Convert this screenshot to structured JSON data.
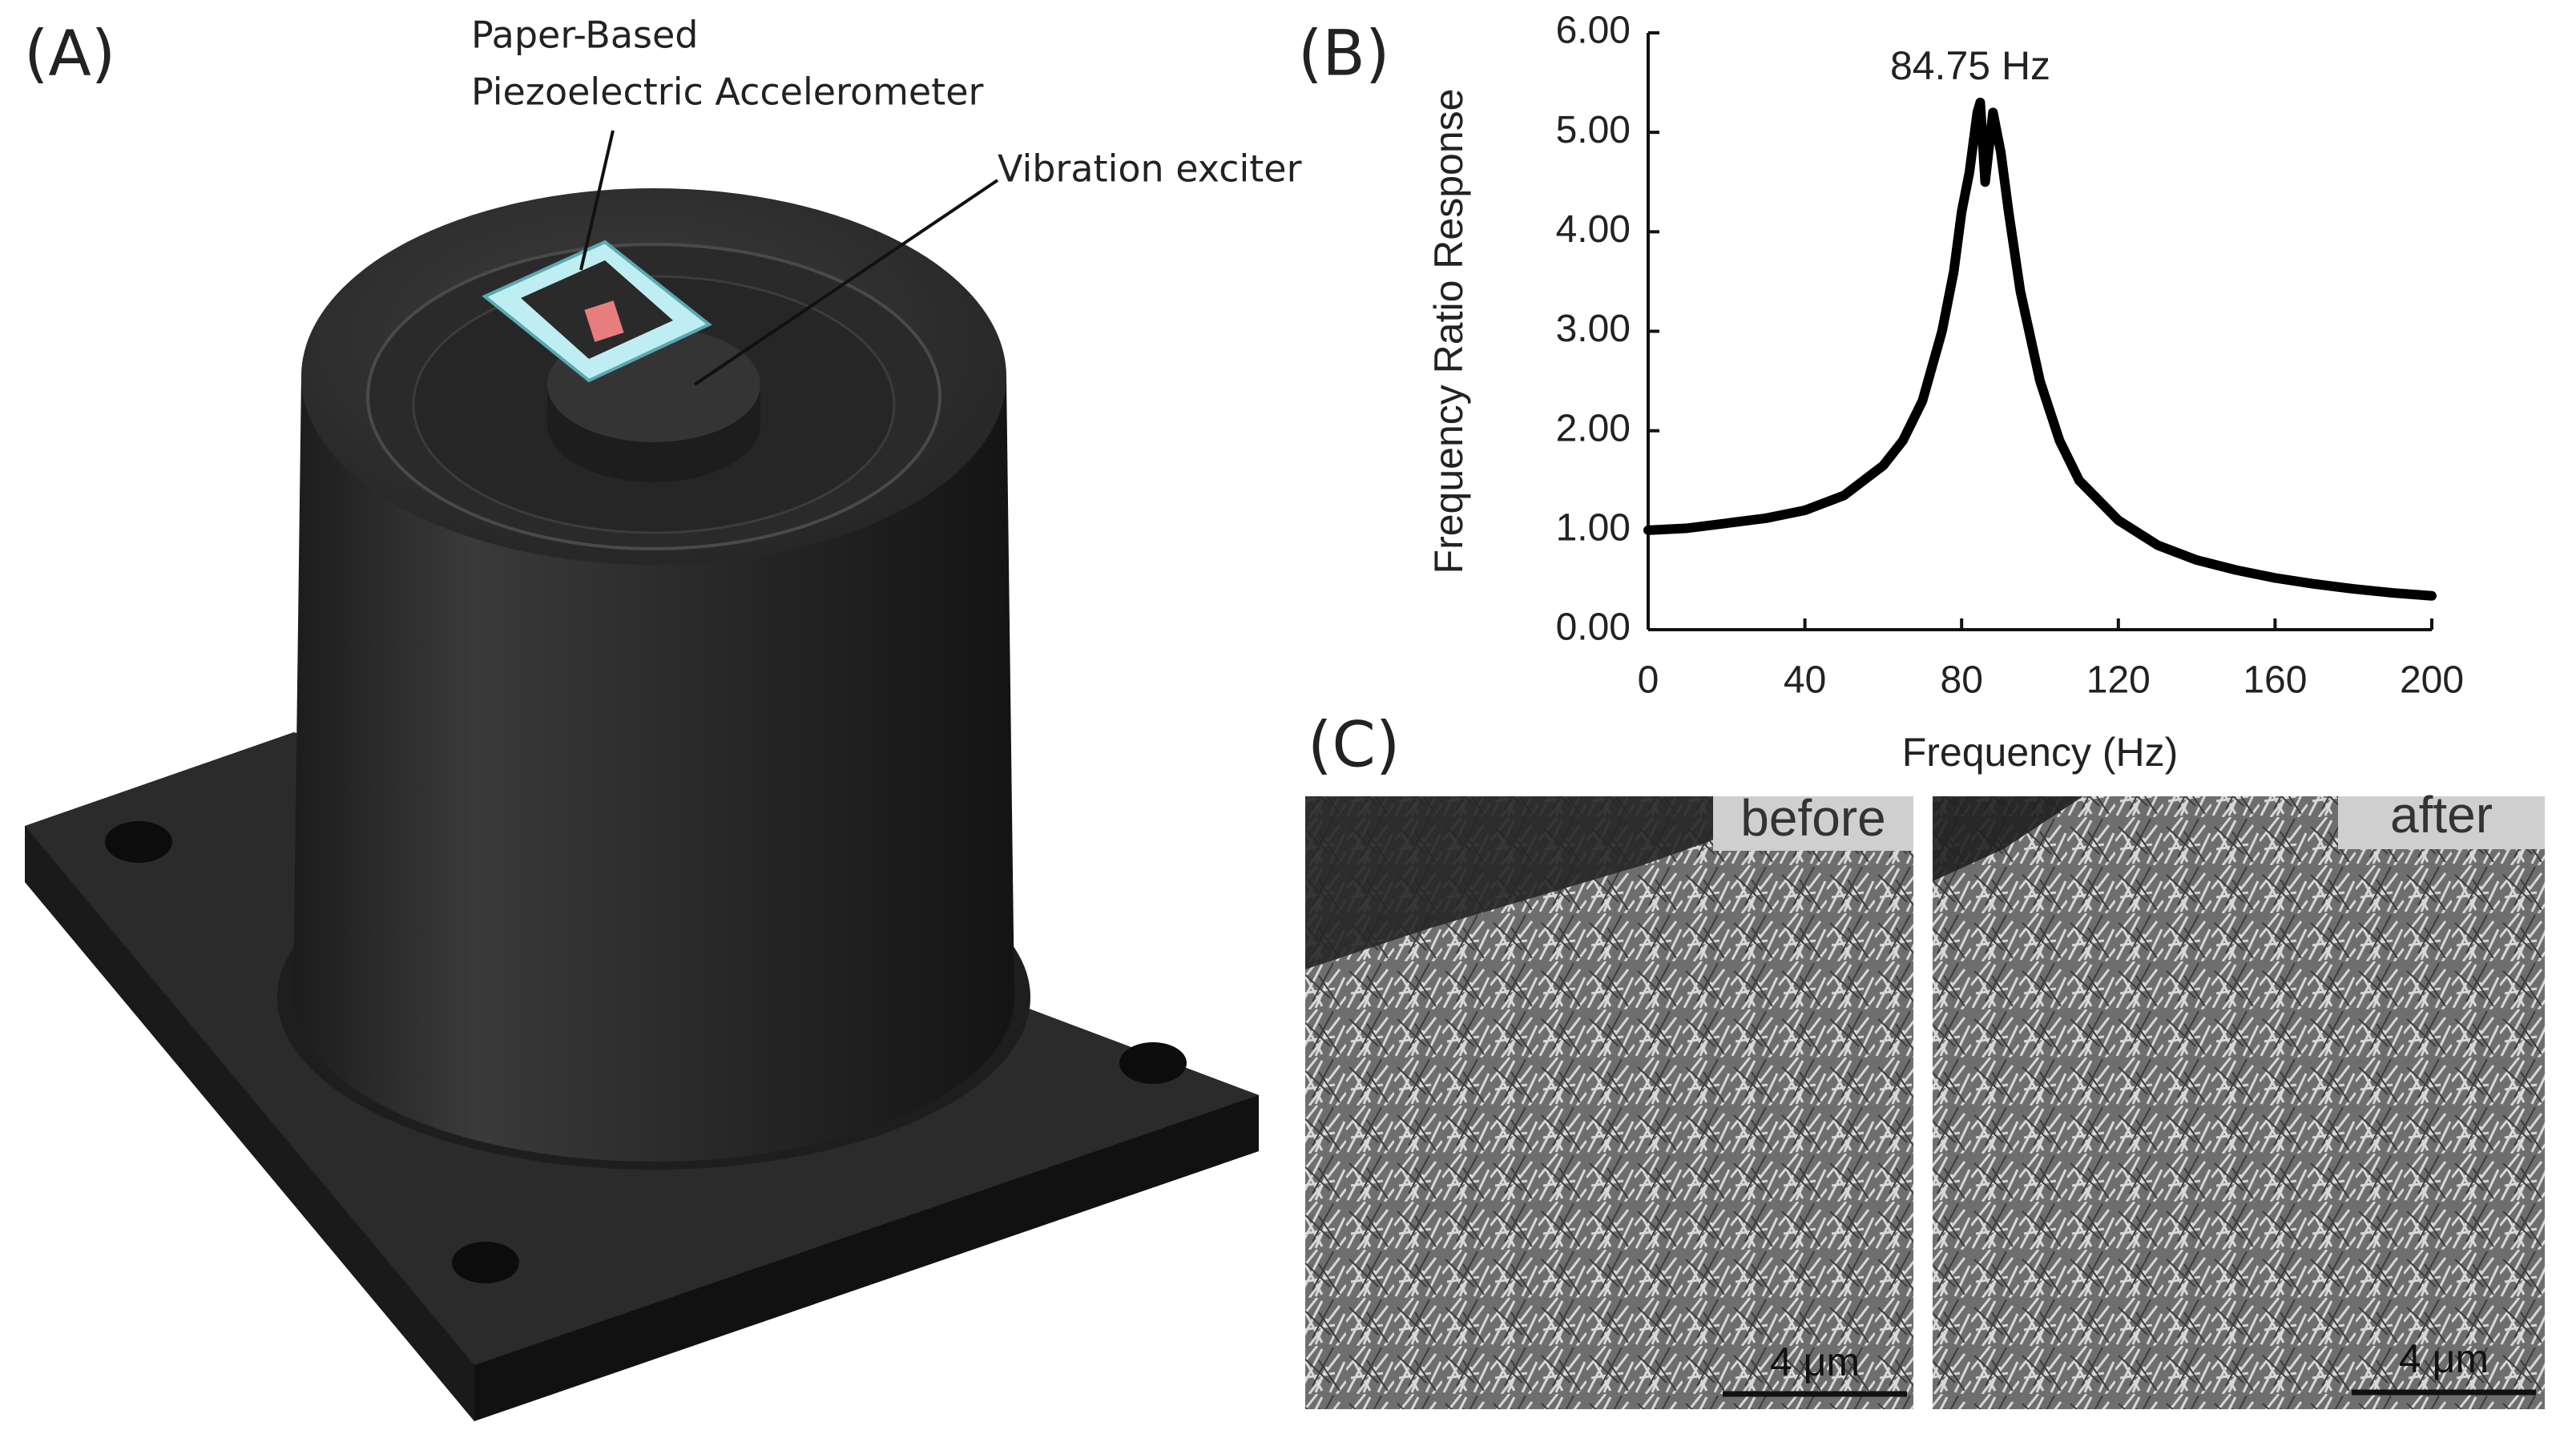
{
  "panel_a": {
    "label": "(A)",
    "annotations": [
      "Paper-Based",
      "Piezoelectric Accelerometer",
      "Vibration exciter"
    ]
  },
  "panel_b": {
    "label": "(B)"
  },
  "chart_data": {
    "type": "line",
    "annotation": "84.75 Hz",
    "x_label": "Frequency (Hz)",
    "y_label": "Frequency Ratio Response",
    "x": [
      0,
      10,
      20,
      30,
      40,
      50,
      60,
      65,
      70,
      75,
      78,
      80,
      82,
      84,
      84.75,
      86,
      88,
      90,
      92,
      95,
      100,
      105,
      110,
      120,
      130,
      140,
      150,
      160,
      170,
      180,
      190,
      200
    ],
    "values": [
      1.0,
      1.02,
      1.07,
      1.12,
      1.2,
      1.35,
      1.65,
      1.9,
      2.3,
      3.0,
      3.6,
      4.2,
      4.6,
      5.2,
      5.3,
      4.5,
      5.2,
      4.8,
      4.2,
      3.4,
      2.5,
      1.9,
      1.5,
      1.1,
      0.85,
      0.7,
      0.6,
      0.52,
      0.46,
      0.41,
      0.37,
      0.34
    ],
    "color": "#000000",
    "xlim": [
      0,
      200
    ],
    "xticks": [
      0,
      40,
      80,
      120,
      160,
      200
    ],
    "ylim": [
      0,
      6
    ],
    "yticks": [
      {
        "value": 0,
        "label": "0.00"
      },
      {
        "value": 1,
        "label": "1.00"
      },
      {
        "value": 2,
        "label": "2.00"
      },
      {
        "value": 3,
        "label": "3.00"
      },
      {
        "value": 4,
        "label": "4.00"
      },
      {
        "value": 5,
        "label": "5.00"
      },
      {
        "value": 6,
        "label": "6.00"
      }
    ]
  },
  "panel_c": {
    "label": "(C)",
    "images": [
      {
        "label": "before",
        "scale_bar": "4 μm"
      },
      {
        "label": "after",
        "scale_bar": "4 μm"
      }
    ]
  }
}
